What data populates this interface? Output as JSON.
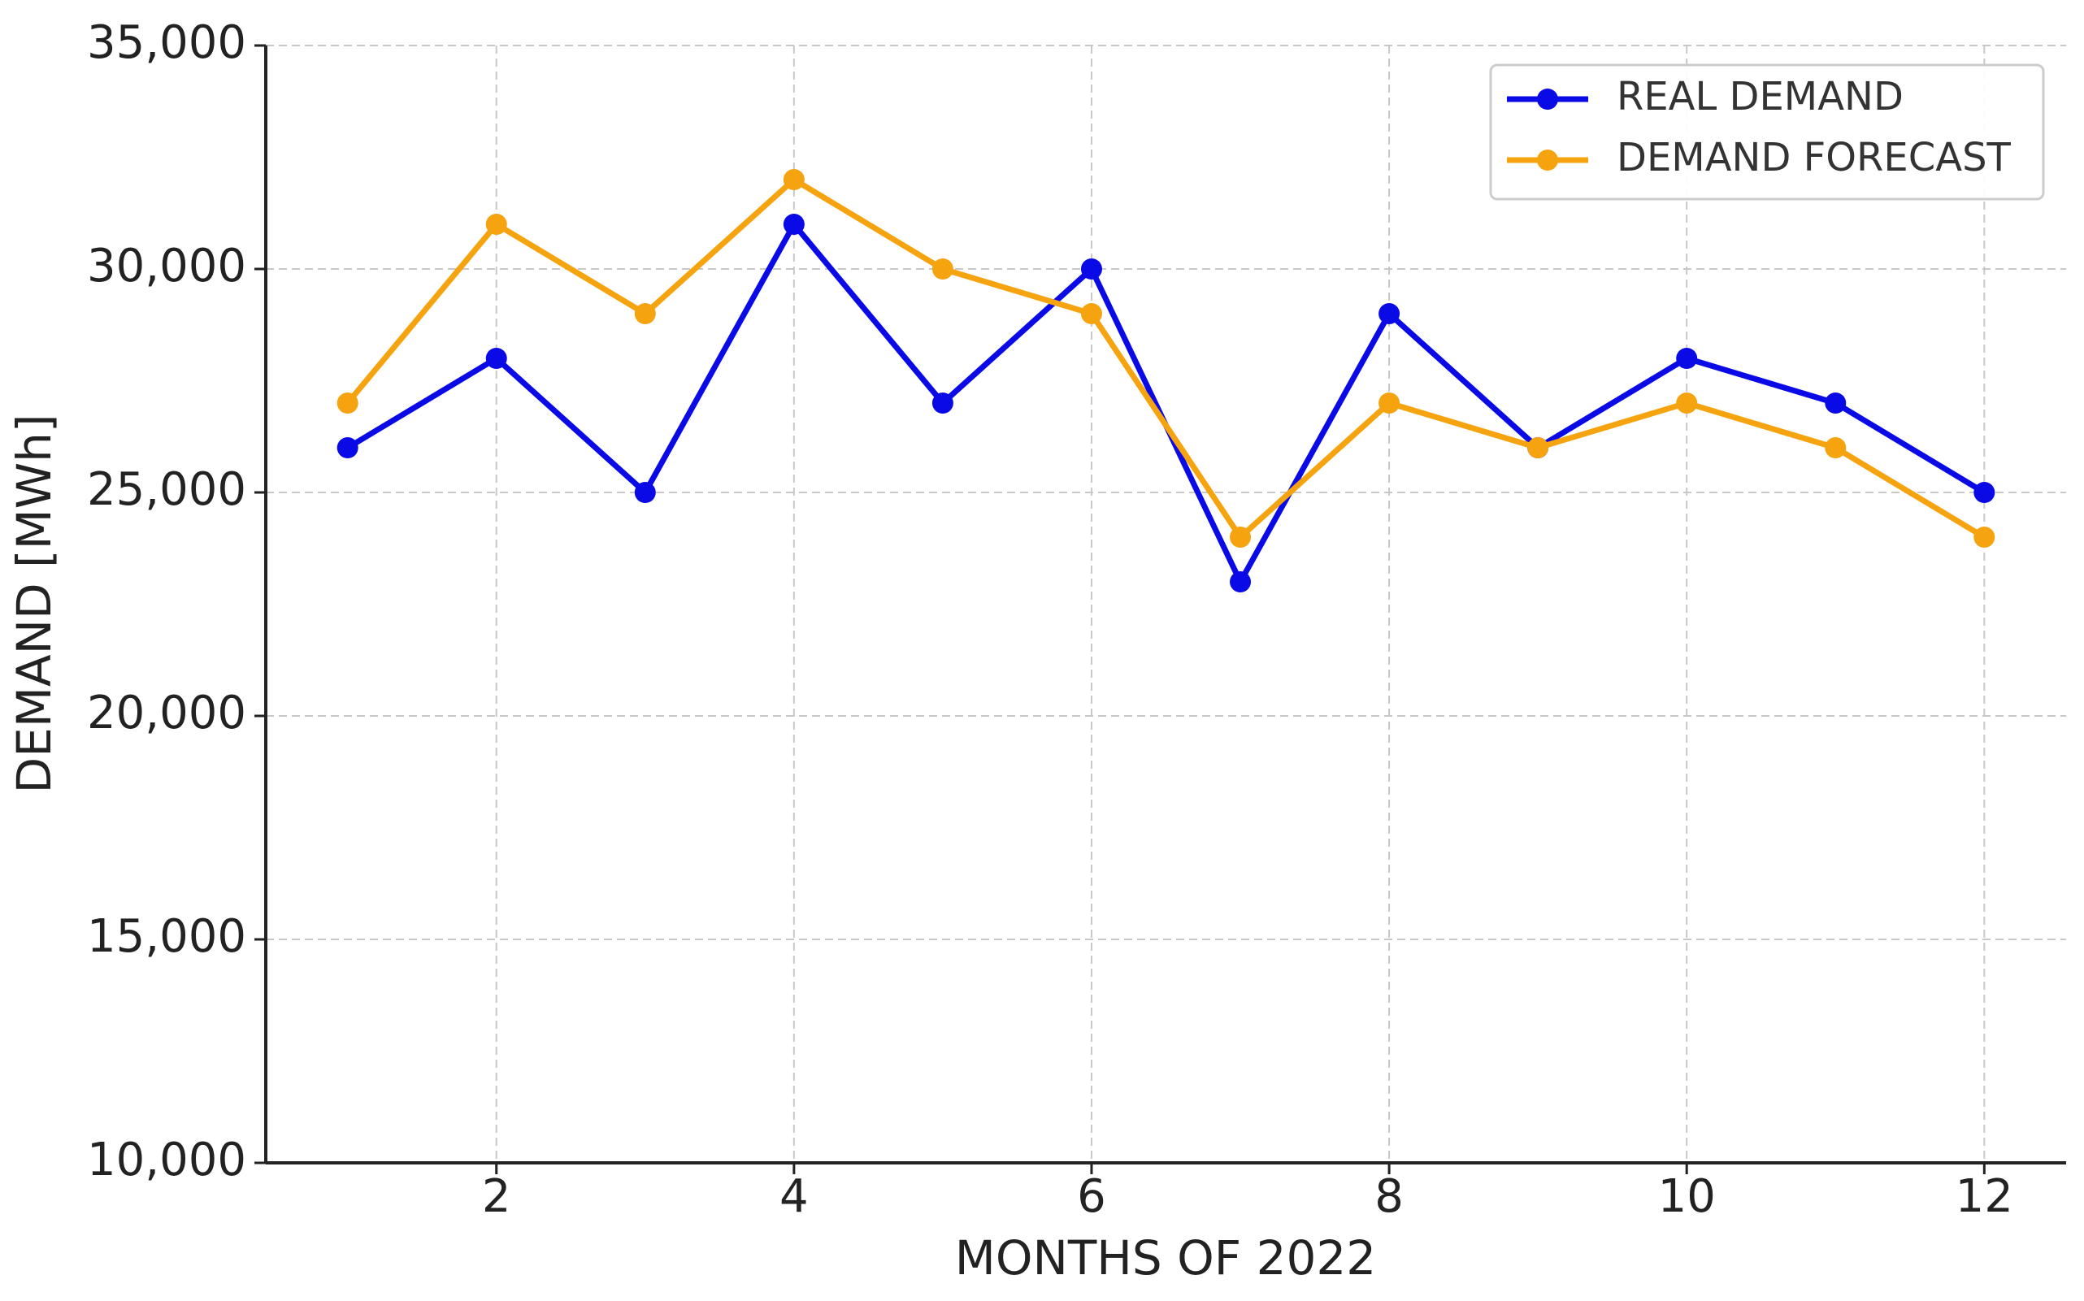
{
  "chart_data": {
    "type": "line",
    "x_label": "MONTHS OF 2022",
    "y_label": "DEMAND [MWh]",
    "x": [
      1,
      2,
      3,
      4,
      5,
      6,
      7,
      8,
      9,
      10,
      11,
      12
    ],
    "series": [
      {
        "name": "REAL DEMAND",
        "color": "#0a0ae6",
        "values": [
          26000,
          28000,
          25000,
          31000,
          27000,
          30000,
          23000,
          29000,
          26000,
          28000,
          27000,
          25000
        ]
      },
      {
        "name": "DEMAND FORECAST",
        "color": "#f5a30f",
        "values": [
          27000,
          31000,
          29000,
          32000,
          30000,
          29000,
          24000,
          27000,
          26000,
          27000,
          26000,
          24000
        ]
      }
    ],
    "xlim": [
      0.45,
      12.55
    ],
    "xticks": [
      2,
      4,
      6,
      8,
      10,
      12
    ],
    "ylim": [
      10000,
      35000
    ],
    "yticks": [
      {
        "value": 10000,
        "label": "10,000"
      },
      {
        "value": 15000,
        "label": "15,000"
      },
      {
        "value": 20000,
        "label": "20,000"
      },
      {
        "value": 25000,
        "label": "25,000"
      },
      {
        "value": 30000,
        "label": "30,000"
      },
      {
        "value": 35000,
        "label": "35,000"
      }
    ],
    "grid": true,
    "legend": "upper right"
  }
}
